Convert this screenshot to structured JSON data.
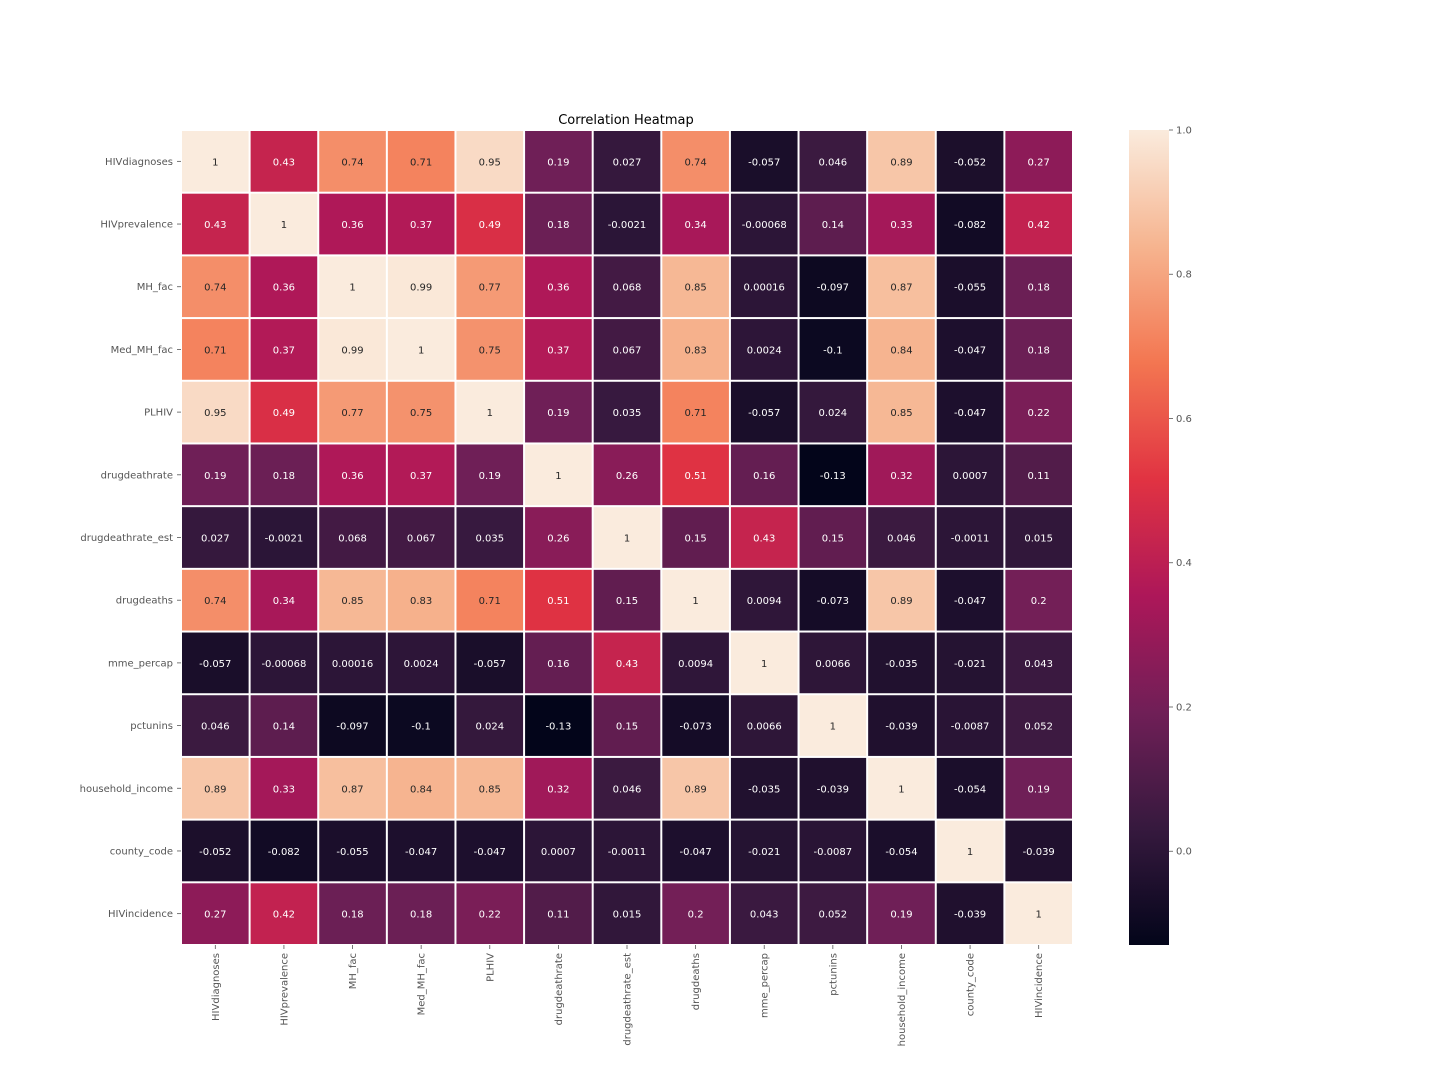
{
  "chart_data": {
    "type": "heatmap",
    "title": "Correlation Heatmap",
    "xlabel": "",
    "ylabel": "",
    "variables": [
      "HIVdiagnoses",
      "HIVprevalence",
      "MH_fac",
      "Med_MH_fac",
      "PLHIV",
      "drugdeathrate",
      "drugdeathrate_est",
      "drugdeaths",
      "mme_percap",
      "pctunins",
      "household_income",
      "county_code",
      "HIVincidence"
    ],
    "labels": [
      [
        "1",
        "0.43",
        "0.74",
        "0.71",
        "0.95",
        "0.19",
        "0.027",
        "0.74",
        "-0.057",
        "0.046",
        "0.89",
        "-0.052",
        "0.27"
      ],
      [
        "0.43",
        "1",
        "0.36",
        "0.37",
        "0.49",
        "0.18",
        "-0.0021",
        "0.34",
        "-0.00068",
        "0.14",
        "0.33",
        "-0.082",
        "0.42"
      ],
      [
        "0.74",
        "0.36",
        "1",
        "0.99",
        "0.77",
        "0.36",
        "0.068",
        "0.85",
        "0.00016",
        "-0.097",
        "0.87",
        "-0.055",
        "0.18"
      ],
      [
        "0.71",
        "0.37",
        "0.99",
        "1",
        "0.75",
        "0.37",
        "0.067",
        "0.83",
        "0.0024",
        "-0.1",
        "0.84",
        "-0.047",
        "0.18"
      ],
      [
        "0.95",
        "0.49",
        "0.77",
        "0.75",
        "1",
        "0.19",
        "0.035",
        "0.71",
        "-0.057",
        "0.024",
        "0.85",
        "-0.047",
        "0.22"
      ],
      [
        "0.19",
        "0.18",
        "0.36",
        "0.37",
        "0.19",
        "1",
        "0.26",
        "0.51",
        "0.16",
        "-0.13",
        "0.32",
        "0.0007",
        "0.11"
      ],
      [
        "0.027",
        "-0.0021",
        "0.068",
        "0.067",
        "0.035",
        "0.26",
        "1",
        "0.15",
        "0.43",
        "0.15",
        "0.046",
        "-0.0011",
        "0.015"
      ],
      [
        "0.74",
        "0.34",
        "0.85",
        "0.83",
        "0.71",
        "0.51",
        "0.15",
        "1",
        "0.0094",
        "-0.073",
        "0.89",
        "-0.047",
        "0.2"
      ],
      [
        "-0.057",
        "-0.00068",
        "0.00016",
        "0.0024",
        "-0.057",
        "0.16",
        "0.43",
        "0.0094",
        "1",
        "0.0066",
        "-0.035",
        "-0.021",
        "0.043"
      ],
      [
        "0.046",
        "0.14",
        "-0.097",
        "-0.1",
        "0.024",
        "-0.13",
        "0.15",
        "-0.073",
        "0.0066",
        "1",
        "-0.039",
        "-0.0087",
        "0.052"
      ],
      [
        "0.89",
        "0.33",
        "0.87",
        "0.84",
        "0.85",
        "0.32",
        "0.046",
        "0.89",
        "-0.035",
        "-0.039",
        "1",
        "-0.054",
        "0.19"
      ],
      [
        "-0.052",
        "-0.082",
        "-0.055",
        "-0.047",
        "-0.047",
        "0.0007",
        "-0.0011",
        "-0.047",
        "-0.021",
        "-0.0087",
        "-0.054",
        "1",
        "-0.039"
      ],
      [
        "0.27",
        "0.42",
        "0.18",
        "0.18",
        "0.22",
        "0.11",
        "0.015",
        "0.2",
        "0.043",
        "0.052",
        "0.19",
        "-0.039",
        "1"
      ]
    ],
    "colorbar": {
      "range": [
        -0.13,
        1.0
      ],
      "ticks": [
        "0.0",
        "0.2",
        "0.4",
        "0.6",
        "0.8",
        "1.0"
      ]
    },
    "colormap": [
      "#03051a",
      "#36193e",
      "#701f57",
      "#ad1759",
      "#e13342",
      "#f37651",
      "#f6b48f",
      "#faebdd"
    ],
    "text_colors": {
      "dark": "#262626",
      "light": "#ffffff"
    }
  }
}
